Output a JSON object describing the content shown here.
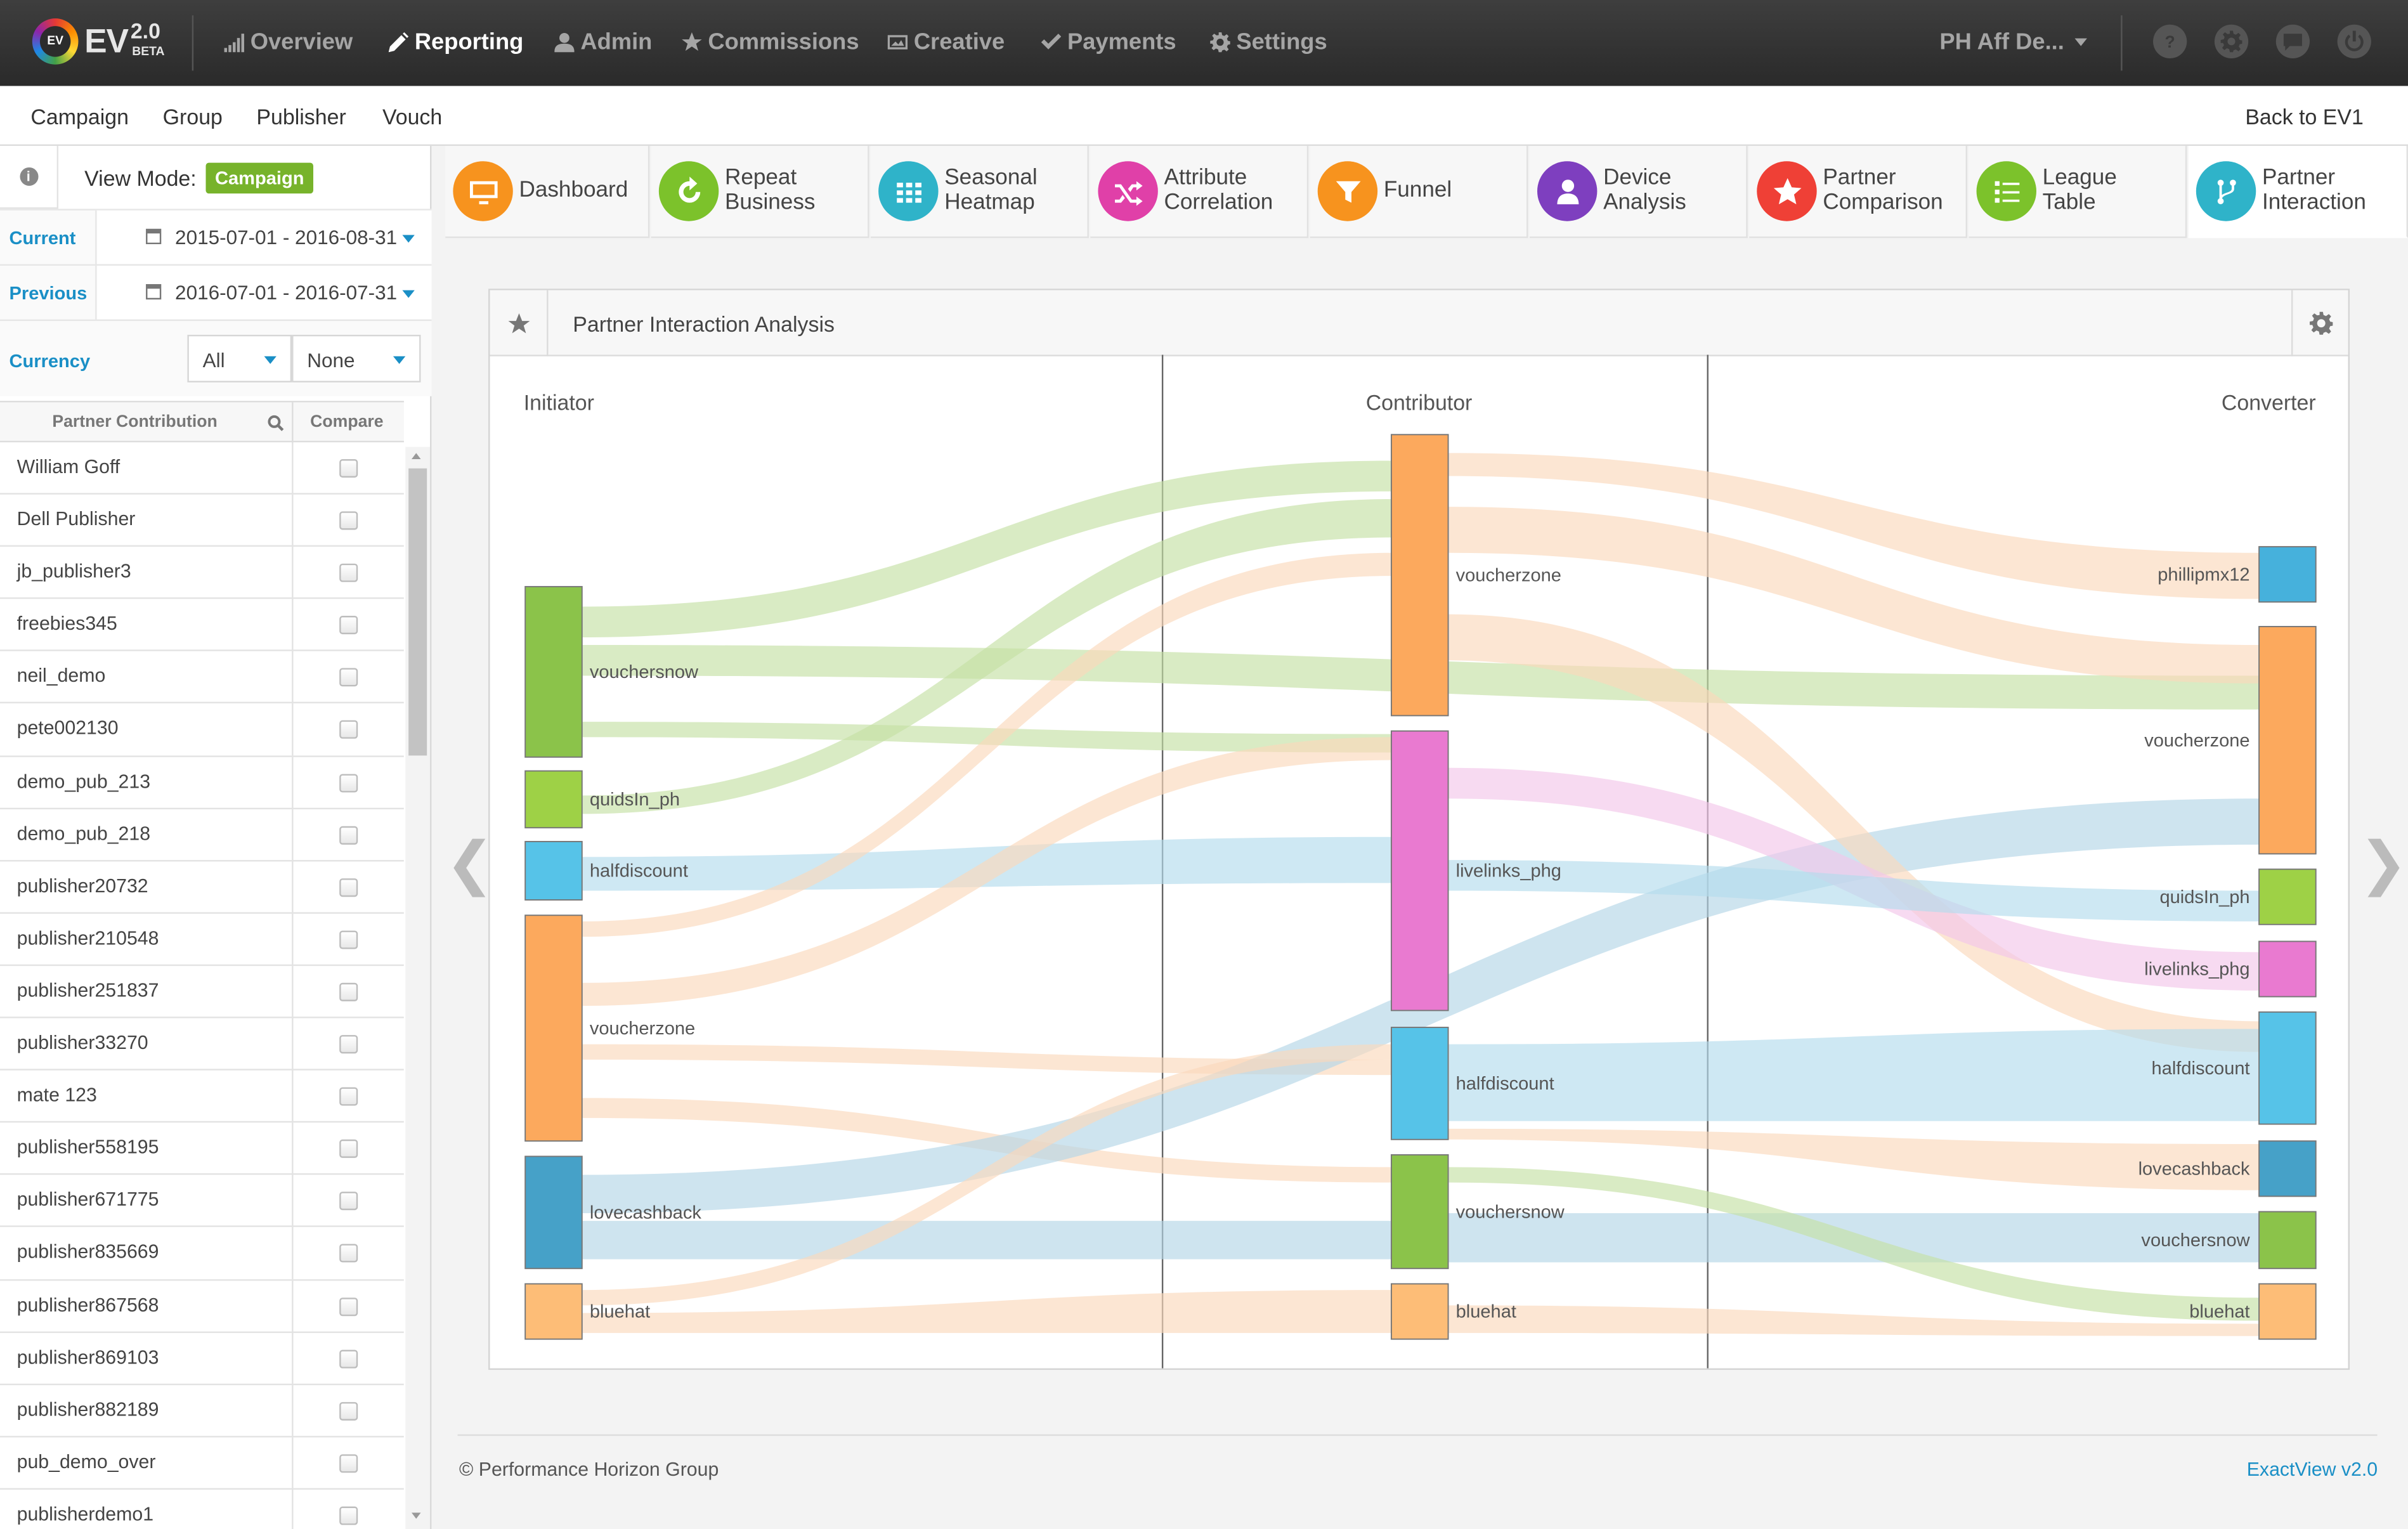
{
  "brand": {
    "name": "EV",
    "version": "2.0",
    "tag": "BETA",
    "logo_text": "EV"
  },
  "nav": [
    {
      "label": "Overview",
      "icon": "bar-chart-icon",
      "active": false
    },
    {
      "label": "Reporting",
      "icon": "pencil-icon",
      "active": true
    },
    {
      "label": "Admin",
      "icon": "user-icon",
      "active": false
    },
    {
      "label": "Commissions",
      "icon": "star-icon",
      "active": false
    },
    {
      "label": "Creative",
      "icon": "image-icon",
      "active": false
    },
    {
      "label": "Payments",
      "icon": "check-icon",
      "active": false
    },
    {
      "label": "Settings",
      "icon": "gear-icon",
      "active": false
    }
  ],
  "account": "PH Aff De...",
  "top_icons": [
    "help-icon",
    "gear-icon",
    "chat-icon",
    "power-icon"
  ],
  "subnav": {
    "items": [
      "Campaign",
      "Group",
      "Publisher",
      "Vouch"
    ],
    "back": "Back to EV1"
  },
  "sidebar": {
    "view_mode_label": "View Mode:",
    "view_mode_value": "Campaign",
    "current_label": "Current",
    "current_range": "2015-07-01 - 2016-08-31",
    "previous_label": "Previous",
    "previous_range": "2016-07-01 - 2016-07-31",
    "currency_label": "Currency",
    "currency_value": "All",
    "currency_compare": "None",
    "col_contribution": "Partner Contribution",
    "col_compare": "Compare",
    "partners": [
      "William Goff",
      "Dell Publisher",
      "jb_publisher3",
      "freebies345",
      "neil_demo",
      "pete002130",
      "demo_pub_213",
      "demo_pub_218",
      "publisher20732",
      "publisher210548",
      "publisher251837",
      "publisher33270",
      "mate 123",
      "publisher558195",
      "publisher671775",
      "publisher835669",
      "publisher867568",
      "publisher869103",
      "publisher882189",
      "pub_demo_over",
      "publisherdemo1"
    ]
  },
  "tabs": [
    {
      "line1": "Dashboard",
      "line2": "",
      "color": "#f7931e",
      "icon": "monitor-icon"
    },
    {
      "line1": "Repeat",
      "line2": "Business",
      "color": "#7cc22b",
      "icon": "refresh-icon"
    },
    {
      "line1": "Seasonal",
      "line2": "Heatmap",
      "color": "#2fb3c9",
      "icon": "grid-icon"
    },
    {
      "line1": "Attribute",
      "line2": "Correlation",
      "color": "#e040a8",
      "icon": "shuffle-icon"
    },
    {
      "line1": "Funnel",
      "line2": "",
      "color": "#f7931e",
      "icon": "funnel-icon"
    },
    {
      "line1": "Device",
      "line2": "Analysis",
      "color": "#7e3fbf",
      "icon": "person-icon"
    },
    {
      "line1": "Partner",
      "line2": "Comparison",
      "color": "#ef4036",
      "icon": "star-icon"
    },
    {
      "line1": "League",
      "line2": "Table",
      "color": "#7cc22b",
      "icon": "list-icon"
    },
    {
      "line1": "Partner",
      "line2": "Interaction",
      "color": "#2fb3c9",
      "icon": "branch-icon",
      "active": true
    }
  ],
  "panel": {
    "title": "Partner Interaction Analysis"
  },
  "chart_data": {
    "type": "sankey",
    "stages": [
      "Initiator",
      "Contributor",
      "Converter"
    ],
    "nodes": {
      "Initiator": [
        {
          "name": "vouchersnow",
          "color": "#8bc34a"
        },
        {
          "name": "quidsIn_ph",
          "color": "#9ed146"
        },
        {
          "name": "halfdiscount",
          "color": "#56c3e8"
        },
        {
          "name": "voucherzone",
          "color": "#fca95d"
        },
        {
          "name": "lovecashback",
          "color": "#46a1c8"
        },
        {
          "name": "bluehat",
          "color": "#fdbd77"
        }
      ],
      "Contributor": [
        {
          "name": "voucherzone",
          "color": "#fca95d"
        },
        {
          "name": "livelinks_phg",
          "color": "#e97ad0"
        },
        {
          "name": "halfdiscount",
          "color": "#56c3e8"
        },
        {
          "name": "vouchersnow",
          "color": "#8bc34a"
        },
        {
          "name": "bluehat",
          "color": "#fdbd77"
        }
      ],
      "Converter": [
        {
          "name": "phillipmx12",
          "color": "#46b1dc"
        },
        {
          "name": "voucherzone",
          "color": "#fca95d"
        },
        {
          "name": "quidsIn_ph",
          "color": "#9ed146"
        },
        {
          "name": "livelinks_phg",
          "color": "#e97ad0"
        },
        {
          "name": "halfdiscount",
          "color": "#56c3e8"
        },
        {
          "name": "lovecashback",
          "color": "#46a1c8"
        },
        {
          "name": "vouchersnow",
          "color": "#8bc34a"
        },
        {
          "name": "bluehat",
          "color": "#fdbd77"
        }
      ]
    },
    "links": [
      {
        "from": "Initiator:vouchersnow",
        "to": "Contributor:voucherzone",
        "color": "#c5e0a5"
      },
      {
        "from": "Initiator:vouchersnow",
        "to": "Converter:voucherzone",
        "color": "#c5e0a5"
      },
      {
        "from": "Initiator:vouchersnow",
        "to": "Contributor:livelinks_phg",
        "color": "#c5e0a5"
      },
      {
        "from": "Initiator:quidsIn_ph",
        "to": "Contributor:voucherzone",
        "color": "#c5e0a5"
      },
      {
        "from": "Initiator:halfdiscount",
        "to": "Contributor:livelinks_phg",
        "color": "#b4dcec"
      },
      {
        "from": "Initiator:voucherzone",
        "to": "Contributor:voucherzone",
        "color": "#fbd9bb"
      },
      {
        "from": "Initiator:voucherzone",
        "to": "Contributor:livelinks_phg",
        "color": "#fbd9bb"
      },
      {
        "from": "Initiator:voucherzone",
        "to": "Contributor:halfdiscount",
        "color": "#fbd9bb"
      },
      {
        "from": "Initiator:voucherzone",
        "to": "Contributor:vouchersnow",
        "color": "#fbd9bb"
      },
      {
        "from": "Initiator:lovecashback",
        "to": "Converter:voucherzone",
        "color": "#b4d6e6"
      },
      {
        "from": "Initiator:lovecashback",
        "to": "Contributor:vouchersnow",
        "color": "#b4d6e6"
      },
      {
        "from": "Initiator:bluehat",
        "to": "Contributor:halfdiscount",
        "color": "#fbd9bb"
      },
      {
        "from": "Initiator:bluehat",
        "to": "Contributor:bluehat",
        "color": "#fbd9bb"
      },
      {
        "from": "Contributor:voucherzone",
        "to": "Converter:phillipmx12",
        "color": "#fbd9bb"
      },
      {
        "from": "Contributor:voucherzone",
        "to": "Converter:voucherzone",
        "color": "#fbd9bb"
      },
      {
        "from": "Contributor:voucherzone",
        "to": "Converter:halfdiscount",
        "color": "#fbd9bb"
      },
      {
        "from": "Contributor:livelinks_phg",
        "to": "Converter:livelinks_phg",
        "color": "#f3c6ea"
      },
      {
        "from": "Contributor:livelinks_phg",
        "to": "Converter:quidsIn_ph",
        "color": "#b4dcec"
      },
      {
        "from": "Contributor:halfdiscount",
        "to": "Converter:halfdiscount",
        "color": "#b4dcec"
      },
      {
        "from": "Contributor:halfdiscount",
        "to": "Converter:lovecashback",
        "color": "#fbd9bb"
      },
      {
        "from": "Contributor:vouchersnow",
        "to": "Converter:vouchersnow",
        "color": "#b4d6e6"
      },
      {
        "from": "Contributor:vouchersnow",
        "to": "Converter:bluehat",
        "color": "#c5e0a5"
      },
      {
        "from": "Contributor:bluehat",
        "to": "Converter:bluehat",
        "color": "#fbd9bb"
      }
    ]
  },
  "footer": {
    "copyright": "© Performance Horizon Group",
    "version": "ExactView v2.0"
  }
}
